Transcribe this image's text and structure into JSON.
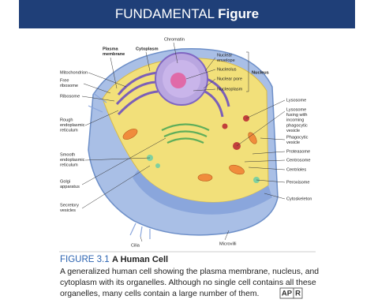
{
  "header": {
    "title": "FUNDAMENTAL",
    "title_bold": "Figure"
  },
  "labels": [
    {
      "lines": [
        "Plasma",
        "membrane"
      ]
    },
    {
      "lines": [
        "Cytoplasm"
      ]
    },
    {
      "lines": [
        "Chromatin"
      ]
    },
    {
      "lines": [
        "Nuclear",
        "envelope"
      ]
    },
    {
      "lines": [
        "Nucleolus"
      ]
    },
    {
      "lines": [
        "Nuclear pore"
      ]
    },
    {
      "lines": [
        "Nucleoplasm"
      ]
    },
    {
      "lines": [
        "Nucleus"
      ]
    },
    {
      "lines": [
        "Mitochondrion"
      ]
    },
    {
      "lines": [
        "Free",
        "ribosome"
      ]
    },
    {
      "lines": [
        "Ribosome"
      ]
    },
    {
      "lines": [
        "Rough",
        "endoplasmic",
        "reticulum"
      ]
    },
    {
      "lines": [
        "Smooth",
        "endoplasmic",
        "reticulum"
      ]
    },
    {
      "lines": [
        "Golgi",
        "apparatus"
      ]
    },
    {
      "lines": [
        "Secretory",
        "vesicles"
      ]
    },
    {
      "lines": [
        "Lysosome"
      ]
    },
    {
      "lines": [
        "Lysosome",
        "fusing with",
        "incoming",
        "phagocytic",
        "vesicle"
      ]
    },
    {
      "lines": [
        "Phagocytic",
        "vesicle"
      ]
    },
    {
      "lines": [
        "Proteasome"
      ]
    },
    {
      "lines": [
        "Centrosome"
      ]
    },
    {
      "lines": [
        "Centrioles"
      ]
    },
    {
      "lines": [
        "Peroxisome"
      ]
    },
    {
      "lines": [
        "Cytoskeleton"
      ]
    },
    {
      "lines": [
        "Cilia"
      ]
    },
    {
      "lines": [
        "Microvilli"
      ]
    }
  ],
  "caption": {
    "number": "FIGURE 3.1",
    "title": "A Human Cell",
    "text": [
      "A generalized human cell showing the plasma membrane, nucleus, and",
      "cytoplasm with its organelles. Although no single cell contains all these",
      "organelles, many cells contain a large number of them."
    ],
    "badge": [
      "AP",
      "R"
    ]
  }
}
